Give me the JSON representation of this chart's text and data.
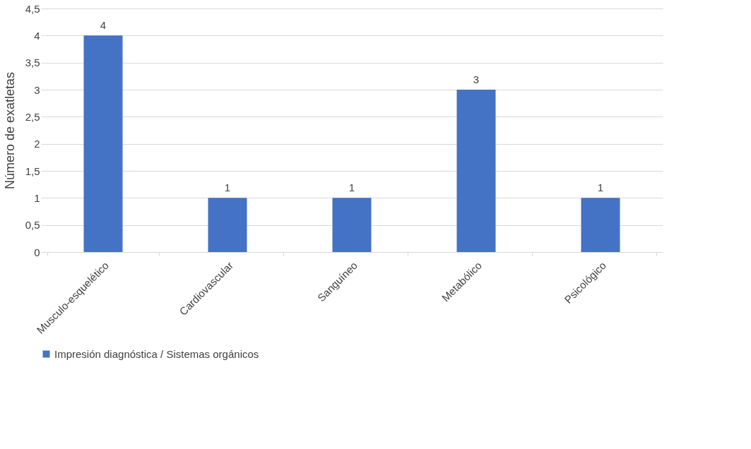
{
  "chart_data": {
    "type": "bar",
    "ylabel": "Número de exatletas",
    "categories": [
      "Musculo-esquelético",
      "Cardiovascular",
      "Sanguíneo",
      "Metabólico",
      "Psicológico"
    ],
    "series": [
      {
        "name": "Impresión diagnóstica / Sistemas orgánicos",
        "color": "#4472c4",
        "values": [
          4,
          1,
          1,
          3,
          1
        ]
      }
    ],
    "ylim": [
      0,
      4.5
    ],
    "yticks": [
      0,
      {
        "value": 0.5,
        "label": "0,5"
      },
      1,
      {
        "value": 1.5,
        "label": "1,5"
      },
      2,
      {
        "value": 2.5,
        "label": "2,5"
      },
      3,
      {
        "value": 3.5,
        "label": "3,5"
      },
      4,
      {
        "value": 4.5,
        "label": "4,5"
      }
    ],
    "grid": "y",
    "data_labels": true,
    "legend": "bottom"
  }
}
